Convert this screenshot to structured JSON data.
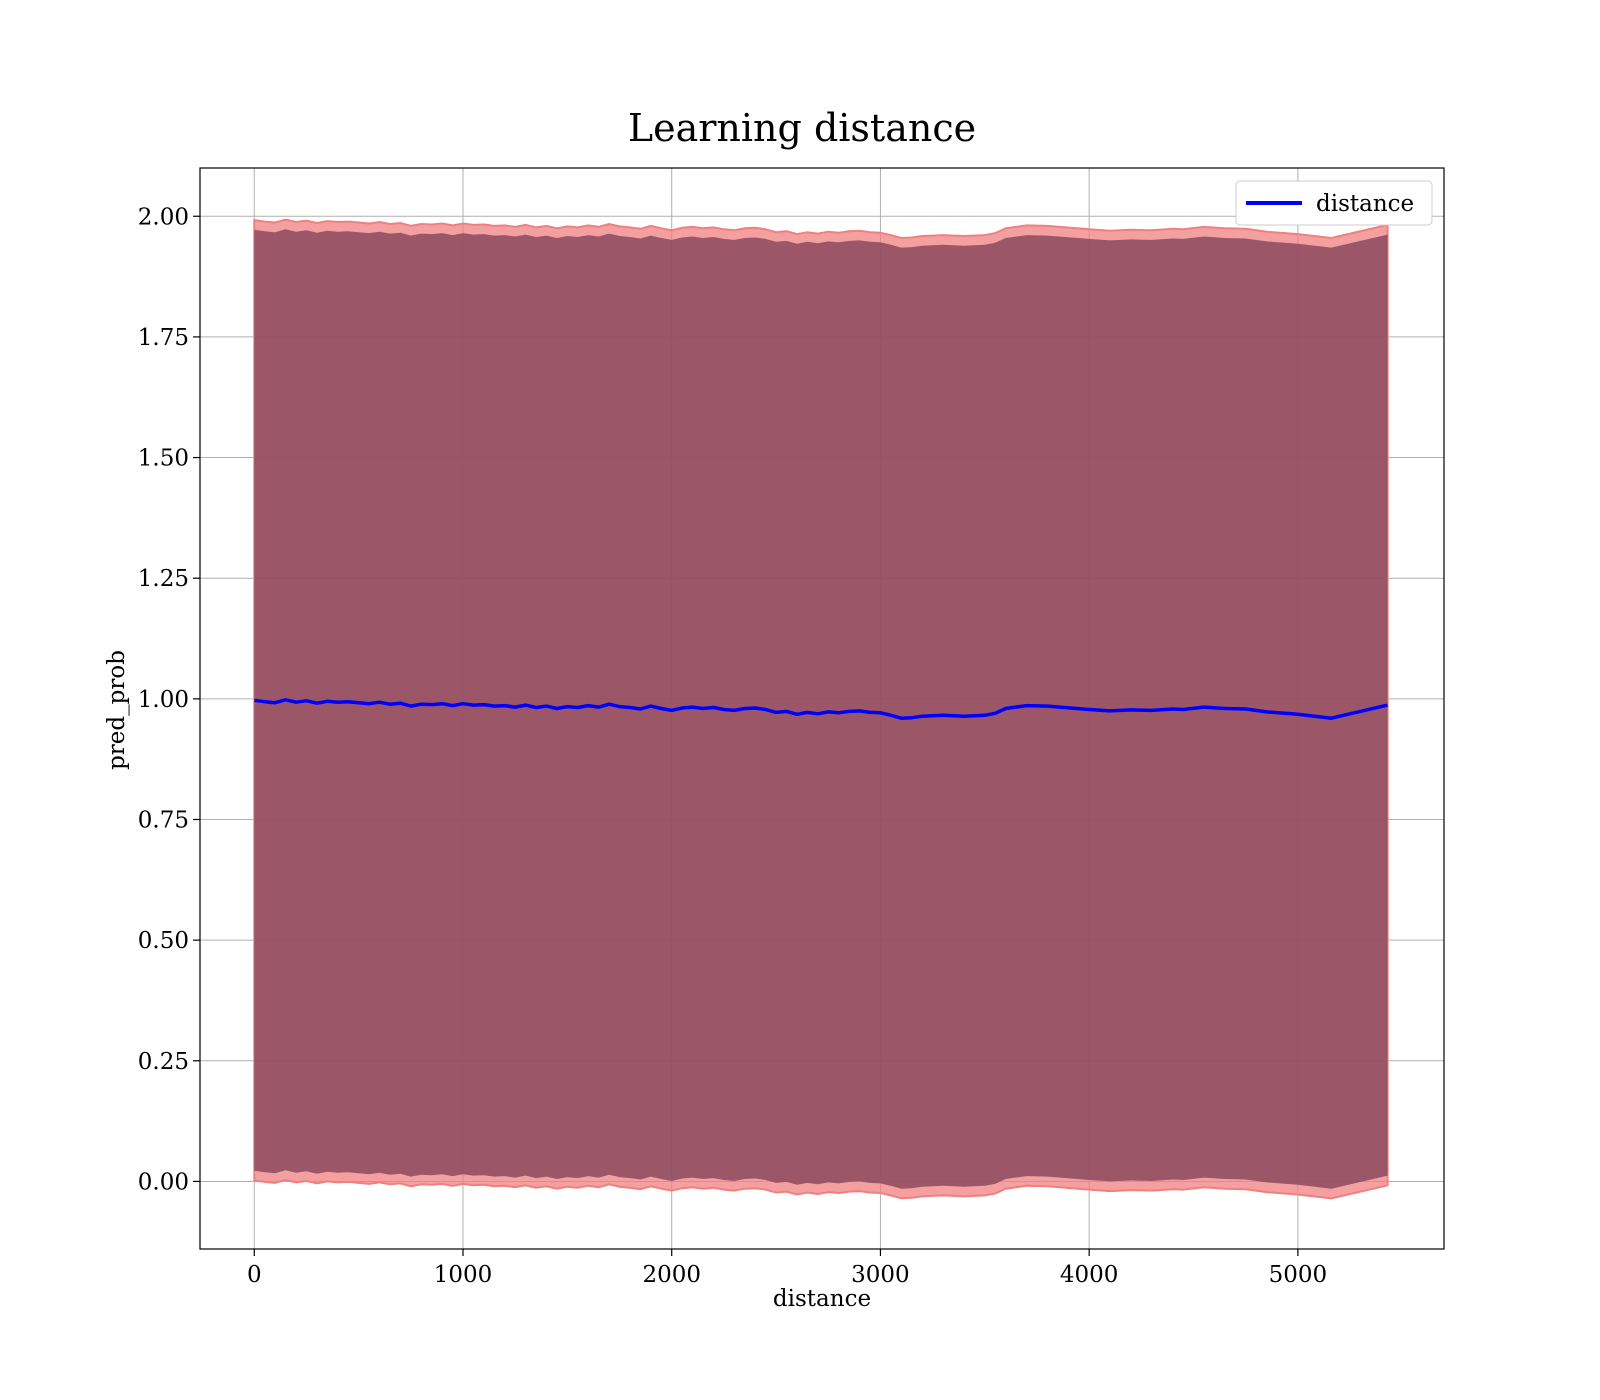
{
  "chart_data": {
    "type": "line",
    "title": "Learning distance",
    "xlabel": "distance",
    "ylabel": "pred_prob",
    "xlim": [
      -260,
      5700
    ],
    "ylim": [
      -0.14,
      2.1
    ],
    "x_ticks": [
      0,
      1000,
      2000,
      3000,
      4000,
      5000
    ],
    "y_ticks": [
      0.0,
      0.25,
      0.5,
      0.75,
      1.0,
      1.25,
      1.5,
      1.75,
      2.0
    ],
    "x_tick_labels": [
      "0",
      "1000",
      "2000",
      "3000",
      "4000",
      "5000"
    ],
    "y_tick_labels": [
      "0.00",
      "0.25",
      "0.50",
      "0.75",
      "1.00",
      "1.25",
      "1.50",
      "1.75",
      "2.00"
    ],
    "grid": true,
    "legend_position": "top-right",
    "colors": {
      "line": "#0000ff",
      "band_outer": "#f08080",
      "band_inner": "#8b4a5e",
      "grid": "#b0b0b0"
    },
    "series": [
      {
        "name": "distance",
        "x": [
          0,
          50,
          100,
          150,
          200,
          250,
          300,
          350,
          400,
          450,
          500,
          550,
          600,
          650,
          700,
          750,
          800,
          850,
          900,
          950,
          1000,
          1050,
          1100,
          1150,
          1200,
          1250,
          1300,
          1350,
          1400,
          1450,
          1500,
          1550,
          1600,
          1650,
          1700,
          1750,
          1800,
          1850,
          1900,
          1950,
          2000,
          2050,
          2100,
          2150,
          2200,
          2250,
          2300,
          2350,
          2400,
          2450,
          2500,
          2550,
          2600,
          2650,
          2700,
          2750,
          2800,
          2850,
          2900,
          2950,
          3000,
          3050,
          3100,
          3150,
          3200,
          3250,
          3300,
          3350,
          3400,
          3450,
          3500,
          3550,
          3600,
          3700,
          3800,
          4000,
          4100,
          4200,
          4300,
          4400,
          4450,
          4550,
          4650,
          4750,
          4850,
          5000,
          5160,
          5430
        ],
        "y": [
          0.997,
          0.994,
          0.992,
          0.998,
          0.993,
          0.996,
          0.991,
          0.995,
          0.993,
          0.994,
          0.992,
          0.99,
          0.993,
          0.989,
          0.991,
          0.985,
          0.989,
          0.988,
          0.99,
          0.986,
          0.99,
          0.987,
          0.988,
          0.985,
          0.986,
          0.983,
          0.987,
          0.982,
          0.985,
          0.98,
          0.984,
          0.982,
          0.986,
          0.983,
          0.989,
          0.984,
          0.982,
          0.979,
          0.985,
          0.98,
          0.976,
          0.981,
          0.983,
          0.98,
          0.982,
          0.978,
          0.976,
          0.98,
          0.981,
          0.978,
          0.972,
          0.974,
          0.968,
          0.972,
          0.969,
          0.973,
          0.971,
          0.974,
          0.975,
          0.972,
          0.971,
          0.966,
          0.96,
          0.961,
          0.964,
          0.965,
          0.966,
          0.965,
          0.964,
          0.965,
          0.966,
          0.97,
          0.98,
          0.986,
          0.985,
          0.978,
          0.975,
          0.977,
          0.976,
          0.979,
          0.978,
          0.983,
          0.98,
          0.979,
          0.973,
          0.968,
          0.96,
          0.987
        ]
      }
    ],
    "band": {
      "outer_upper_offset": 0.995,
      "outer_lower_offset": -0.995,
      "inner_upper_offset": 0.975,
      "inner_lower_offset": -0.975
    }
  }
}
